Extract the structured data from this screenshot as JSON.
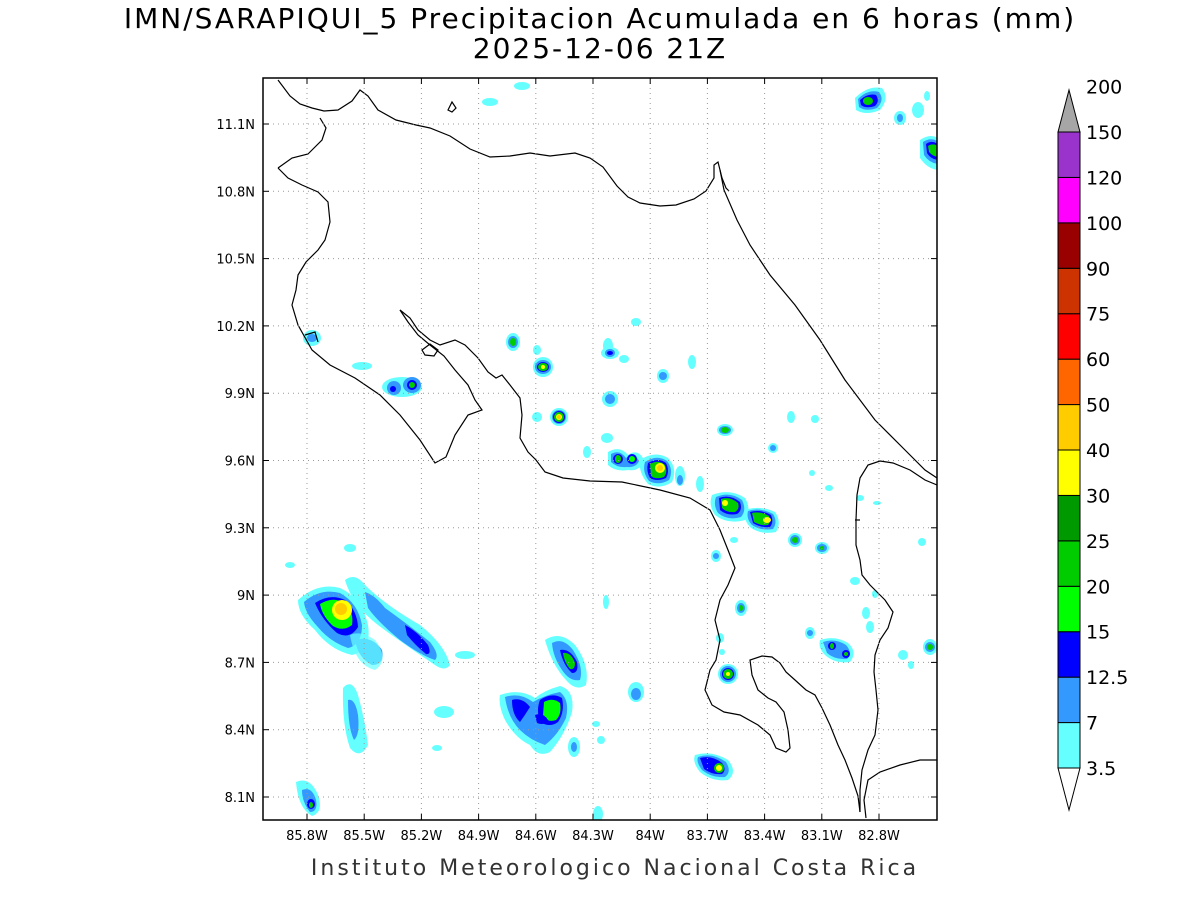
{
  "title": "IMN/SARAPIQUI_5 Precipitacion Acumulada en 6 horas (mm)",
  "subtitle": "2025-12-06 21Z",
  "footer": "Instituto Meteorologico Nacional Costa Rica",
  "map": {
    "lon_range": [
      -86.03,
      -83.0
    ],
    "lat_range": [
      8.0,
      11.3
    ],
    "lon_ticks": [
      "85.8W",
      "85.5W",
      "85.2W",
      "84.9W",
      "84.6W",
      "84.3W",
      "84W",
      "83.7W",
      "83.4W",
      "83.1W",
      "82.8W"
    ],
    "lat_ticks": [
      "8.1N",
      "8.4N",
      "8.7N",
      "9N",
      "9.3N",
      "9.6N",
      "9.9N",
      "10.2N",
      "10.5N",
      "10.8N",
      "11.1N"
    ],
    "grid": "dotted"
  },
  "colorbar": {
    "levels": [
      "3.5",
      "7",
      "12.5",
      "15",
      "20",
      "25",
      "30",
      "40",
      "50",
      "60",
      "75",
      "90",
      "100",
      "120",
      "150",
      "200"
    ],
    "colors": [
      "#66ffff",
      "#3399ff",
      "#0000ff",
      "#00ff00",
      "#00cc00",
      "#009900",
      "#ffff00",
      "#ffcc00",
      "#ff6600",
      "#ff0000",
      "#cc3300",
      "#990000",
      "#ff00ff",
      "#9933cc",
      "#f2f2f2",
      "#a6a6a6"
    ]
  },
  "cells": [
    {
      "lon": -85.6,
      "lat": 8.9,
      "peak": "40"
    },
    {
      "lon": -85.4,
      "lat": 8.85,
      "peak": "15"
    },
    {
      "lon": -85.15,
      "lat": 8.78,
      "peak": "15"
    },
    {
      "lon": -85.05,
      "lat": 8.72,
      "peak": "12.5"
    },
    {
      "lon": -85.55,
      "lat": 8.5,
      "peak": "7"
    },
    {
      "lon": -85.75,
      "lat": 8.1,
      "peak": "15"
    },
    {
      "lon": -84.5,
      "lat": 8.5,
      "peak": "20"
    },
    {
      "lon": -84.7,
      "lat": 8.5,
      "peak": "12.5"
    },
    {
      "lon": -84.4,
      "lat": 8.75,
      "peak": "20"
    },
    {
      "lon": -84.0,
      "lat": 9.57,
      "peak": "40"
    },
    {
      "lon": -84.2,
      "lat": 9.61,
      "peak": "20"
    },
    {
      "lon": -84.4,
      "lat": 9.8,
      "peak": "40"
    },
    {
      "lon": -84.5,
      "lat": 10.02,
      "peak": "30"
    },
    {
      "lon": -83.55,
      "lat": 9.42,
      "peak": "20"
    },
    {
      "lon": -83.4,
      "lat": 9.34,
      "peak": "40"
    },
    {
      "lon": -83.6,
      "lat": 8.25,
      "peak": "30"
    },
    {
      "lon": -83.6,
      "lat": 8.65,
      "peak": "30"
    },
    {
      "lon": -82.75,
      "lat": 11.2,
      "peak": "20"
    },
    {
      "lon": -82.5,
      "lat": 10.95,
      "peak": "20"
    },
    {
      "lon": -85.2,
      "lat": 9.92,
      "peak": "20"
    },
    {
      "lon": -83.05,
      "lat": 8.78,
      "peak": "20"
    },
    {
      "lon": -83.2,
      "lat": 9.24,
      "peak": "20"
    }
  ]
}
